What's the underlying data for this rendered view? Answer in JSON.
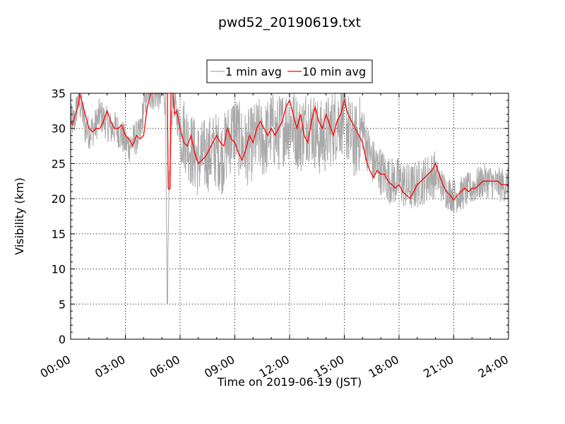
{
  "chart_data": {
    "type": "line",
    "title": "pwd52_20190619.txt",
    "xlabel": "Time on 2019-06-19 (JST)",
    "ylabel": "Visibility (km)",
    "xlim_hours": [
      0,
      24
    ],
    "ylim": [
      0,
      35
    ],
    "x_ticks": [
      {
        "hour": 0,
        "label": "00:00"
      },
      {
        "hour": 3,
        "label": "03:00"
      },
      {
        "hour": 6,
        "label": "06:00"
      },
      {
        "hour": 9,
        "label": "09:00"
      },
      {
        "hour": 12,
        "label": "12:00"
      },
      {
        "hour": 15,
        "label": "15:00"
      },
      {
        "hour": 18,
        "label": "18:00"
      },
      {
        "hour": 21,
        "label": "21:00"
      },
      {
        "hour": 24,
        "label": "24:00"
      }
    ],
    "y_ticks": [
      0,
      5,
      10,
      15,
      20,
      25,
      30,
      35
    ],
    "grid": "dotted",
    "legend_position": "top-center",
    "series": [
      {
        "name": "1 min avg",
        "color": "#a9a9a9",
        "noise_band_km": 2.5,
        "dip": {
          "hour": 5.3,
          "value": 5
        },
        "x_hours": [
          0.0,
          0.2,
          0.4,
          0.6,
          0.8,
          1.0,
          1.3,
          1.6,
          1.9,
          2.2,
          2.5,
          2.8,
          3.0,
          3.2,
          3.5,
          3.8,
          4.0,
          4.2,
          4.5,
          4.8,
          5.0,
          5.2,
          5.3,
          5.4,
          5.6,
          5.8,
          6.0,
          6.3,
          6.6,
          7.0,
          7.3,
          7.6,
          8.0,
          8.3,
          8.6,
          9.0,
          9.3,
          9.6,
          10.0,
          10.3,
          10.6,
          11.0,
          11.3,
          11.6,
          12.0,
          12.3,
          12.6,
          13.0,
          13.3,
          13.6,
          14.0,
          14.3,
          14.6,
          15.0,
          15.3,
          15.6,
          16.0,
          16.3,
          16.6,
          17.0,
          17.3,
          17.6,
          18.0,
          18.3,
          18.6,
          19.0,
          19.3,
          19.6,
          20.0,
          20.3,
          20.6,
          21.0,
          21.3,
          21.6,
          22.0,
          22.3,
          22.6,
          23.0,
          23.3,
          23.6,
          24.0
        ],
        "values": [
          31,
          31,
          34,
          33,
          30,
          29.5,
          30,
          32,
          31,
          30,
          30,
          29,
          28,
          27.5,
          28.5,
          29,
          33,
          35,
          35,
          35,
          35,
          34,
          5,
          21.5,
          35,
          32,
          30,
          29,
          27,
          25.5,
          26,
          26.5,
          27,
          26,
          28,
          30,
          28,
          27,
          28,
          29,
          28,
          30,
          29,
          30,
          31,
          30,
          29,
          31,
          30,
          28.5,
          29,
          30,
          31,
          32,
          29,
          28,
          30,
          27,
          25,
          24,
          23,
          22.5,
          22.5,
          22,
          21.5,
          22,
          22.5,
          23,
          23.5,
          22,
          21,
          20.5,
          20.5,
          21,
          21.5,
          22,
          22.5,
          22.5,
          22,
          22,
          22
        ]
      },
      {
        "name": "10 min avg",
        "color": "#ff0000",
        "x_hours": [
          0.0,
          0.1,
          0.2,
          0.4,
          0.5,
          0.6,
          0.8,
          1.0,
          1.2,
          1.4,
          1.6,
          1.8,
          2.0,
          2.2,
          2.4,
          2.6,
          2.8,
          3.0,
          3.2,
          3.4,
          3.6,
          3.8,
          4.0,
          4.2,
          4.4,
          4.6,
          4.8,
          5.0,
          5.2,
          5.3,
          5.35,
          5.4,
          5.45,
          5.5,
          5.6,
          5.7,
          5.8,
          5.9,
          6.0,
          6.2,
          6.4,
          6.6,
          6.8,
          7.0,
          7.2,
          7.4,
          7.6,
          7.8,
          8.0,
          8.2,
          8.4,
          8.6,
          8.8,
          9.0,
          9.2,
          9.4,
          9.6,
          9.8,
          10.0,
          10.2,
          10.4,
          10.6,
          10.8,
          11.0,
          11.2,
          11.4,
          11.6,
          11.8,
          12.0,
          12.2,
          12.4,
          12.6,
          12.8,
          13.0,
          13.2,
          13.4,
          13.6,
          13.8,
          14.0,
          14.2,
          14.4,
          14.6,
          14.8,
          15.0,
          15.2,
          15.4,
          15.6,
          15.8,
          16.0,
          16.2,
          16.4,
          16.6,
          16.8,
          17.0,
          17.2,
          17.4,
          17.6,
          17.8,
          18.0,
          18.2,
          18.4,
          18.6,
          18.8,
          19.0,
          19.2,
          19.4,
          19.6,
          19.8,
          20.0,
          20.2,
          20.4,
          20.6,
          20.8,
          21.0,
          21.2,
          21.4,
          21.6,
          21.8,
          22.0,
          22.2,
          22.4,
          22.6,
          22.8,
          23.0,
          23.2,
          23.4,
          23.6,
          23.8,
          24.0
        ],
        "values": [
          31,
          30.5,
          31.5,
          33,
          35,
          34,
          32,
          30,
          29.5,
          30,
          30,
          31,
          32.5,
          31,
          30,
          30,
          30.5,
          29,
          28.5,
          27.5,
          29,
          28.5,
          29,
          33,
          35,
          35,
          35,
          35,
          35,
          35,
          21.5,
          21.3,
          21.5,
          35,
          35,
          32,
          32.5,
          31.5,
          30,
          28,
          27.5,
          29,
          26.5,
          25,
          25.5,
          26,
          27,
          28,
          29,
          28,
          27.5,
          30,
          28.5,
          28,
          26.5,
          25.5,
          27,
          29,
          28,
          30,
          31,
          30,
          29,
          30,
          29,
          30,
          31,
          33,
          34,
          32,
          30,
          32,
          29,
          28,
          31,
          33,
          31,
          30,
          32,
          30.5,
          29,
          31,
          32,
          34,
          32,
          31,
          30,
          29,
          28,
          25.5,
          24,
          23,
          24,
          23.5,
          23.5,
          22.5,
          22,
          21.5,
          22,
          21,
          20.5,
          20,
          21,
          22,
          22.5,
          23,
          23.5,
          24,
          25,
          23.5,
          22,
          21,
          20.5,
          19.8,
          20.5,
          21,
          21.5,
          21,
          21.5,
          21.5,
          22,
          22.5,
          22.5,
          22.5,
          22.5,
          22.5,
          22,
          22,
          21.8
        ]
      }
    ]
  }
}
